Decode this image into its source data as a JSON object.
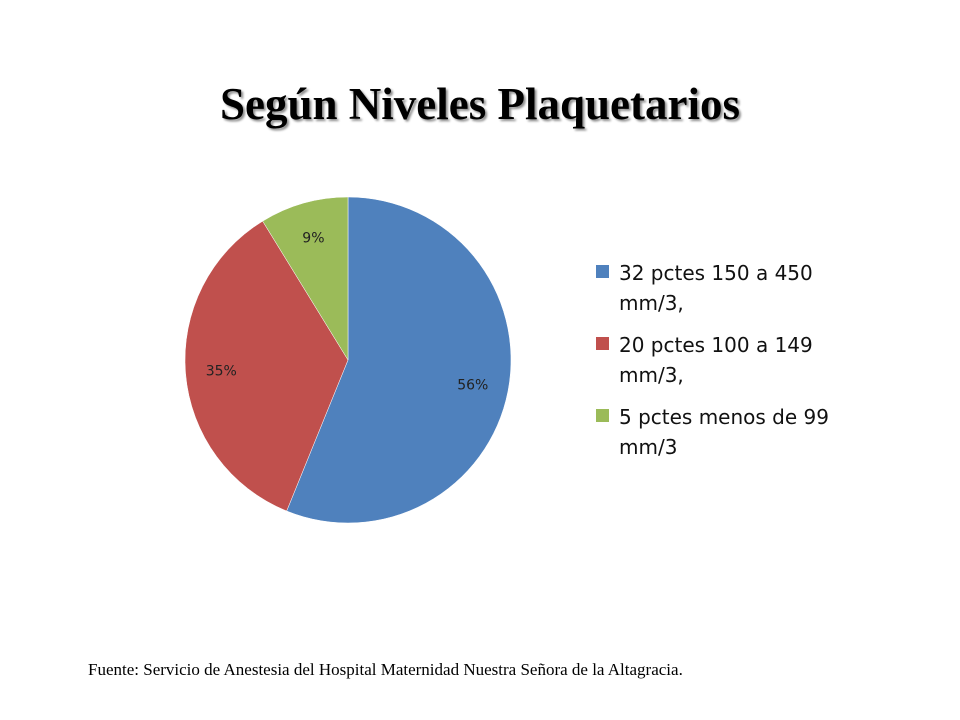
{
  "slide": {
    "title": "Según Niveles Plaquetarios",
    "source": "Fuente: Servicio de Anestesia del Hospital Maternidad Nuestra Señora de la Altagracia."
  },
  "chart_data": {
    "type": "pie",
    "title": "Según Niveles Plaquetarios",
    "categories": [
      "32 pctes 150 a 450 mm/3,",
      "20 pctes 100 a 149 mm/3,",
      "5 pctes menos de 99 mm/3"
    ],
    "values": [
      32,
      20,
      5
    ],
    "labels": [
      "56%",
      "35%",
      "9%"
    ],
    "colors": [
      "#4F81BD",
      "#C0504D",
      "#9BBB59"
    ],
    "legend": "right"
  }
}
